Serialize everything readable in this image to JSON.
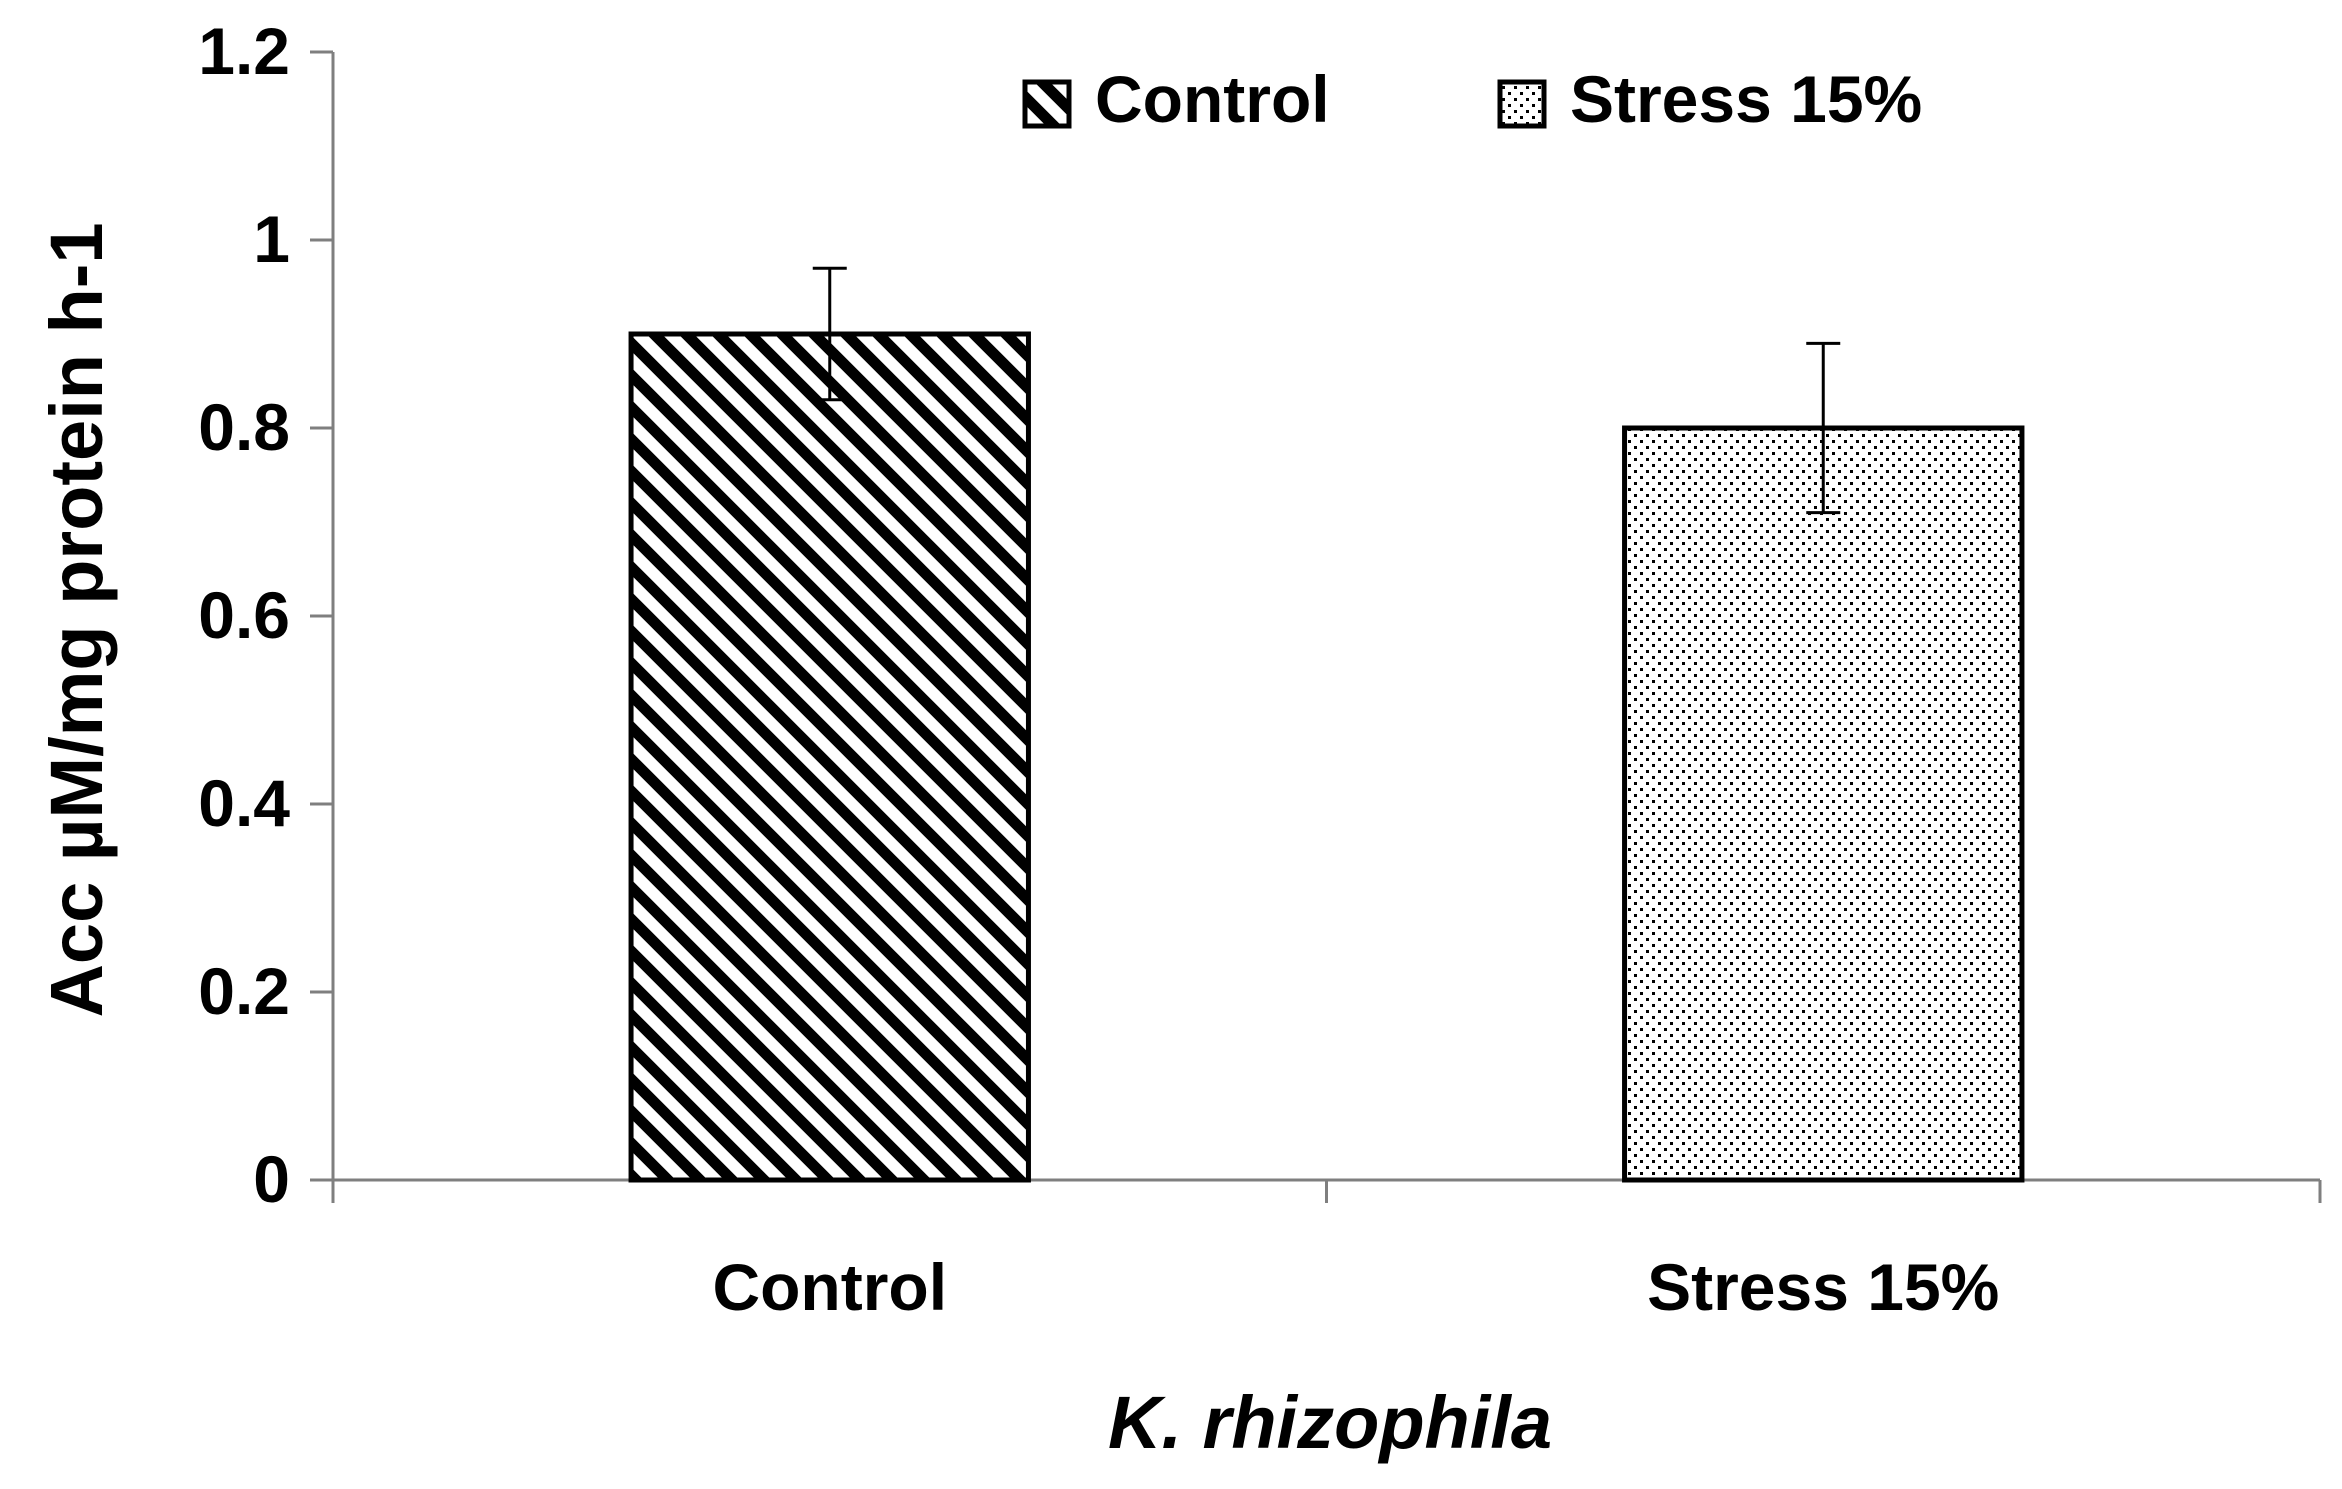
{
  "chart_data": {
    "type": "bar",
    "title": "",
    "xlabel": "K. rhizophila",
    "ylabel": "Acc µM/mg protein h-1",
    "categories": [
      "Control",
      "Stress 15%"
    ],
    "series": [
      {
        "name": "Control",
        "pattern": "diagonal-stripes",
        "values": [
          0.9,
          null
        ],
        "errors": [
          0.07,
          null
        ]
      },
      {
        "name": "Stress 15%",
        "pattern": "dots",
        "values": [
          null,
          0.8
        ],
        "errors": [
          null,
          0.09
        ]
      }
    ],
    "values": [
      0.9,
      0.8
    ],
    "errors": [
      0.07,
      0.09
    ],
    "ylim": [
      0,
      1.2
    ],
    "yticks": [
      "0",
      "0.2",
      "0.4",
      "0.6",
      "0.8",
      "1",
      "1.2"
    ],
    "grid": false,
    "legend": {
      "placement": "top-center",
      "entries": [
        "Control",
        "Stress 15%"
      ]
    },
    "colors": {
      "ink": "#000000",
      "background": "#ffffff"
    }
  }
}
